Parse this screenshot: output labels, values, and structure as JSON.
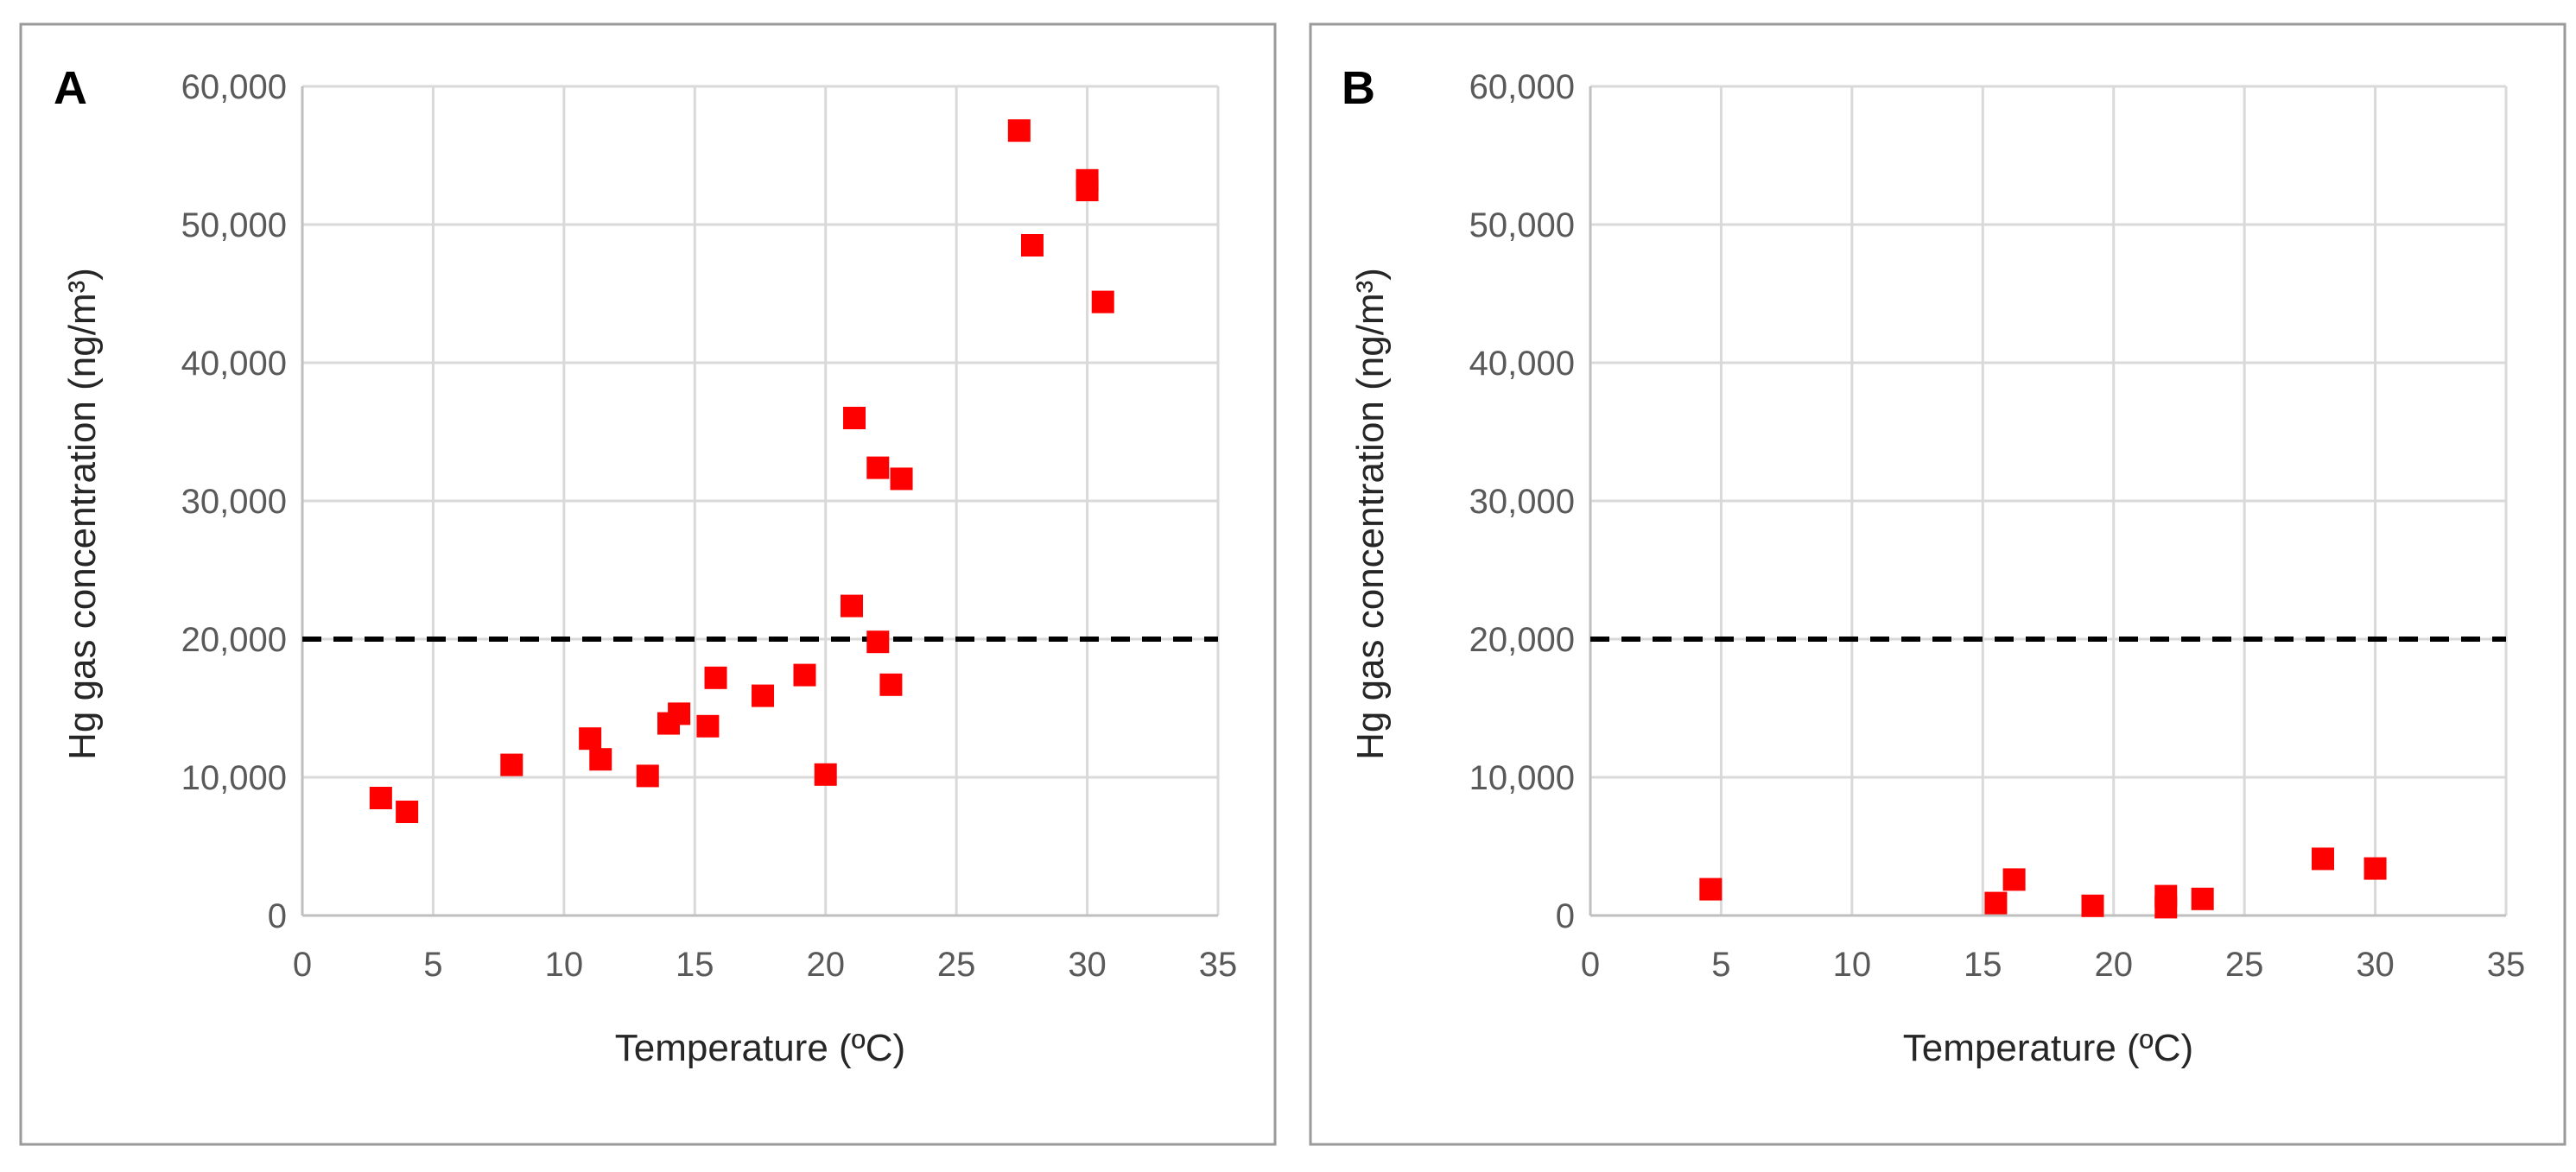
{
  "colors": {
    "marker": "#ff0000",
    "threshold": "#000000",
    "grid": "#d9d9d9",
    "tick_text": "#595959"
  },
  "chart_data": [
    {
      "type": "scatter",
      "panel_label": "A",
      "xlabel": "Temperature (ºC)",
      "ylabel": "Hg gas concentration (ng/m³)",
      "xlim": [
        0,
        35
      ],
      "ylim": [
        0,
        60000
      ],
      "x_ticks": [
        0,
        5,
        10,
        15,
        20,
        25,
        30,
        35
      ],
      "y_ticks": [
        0,
        10000,
        20000,
        30000,
        40000,
        50000,
        60000
      ],
      "x_tick_labels": [
        "0",
        "5",
        "10",
        "15",
        "20",
        "25",
        "30",
        "35"
      ],
      "y_tick_labels": [
        "0",
        "10,000",
        "20,000",
        "30,000",
        "40,000",
        "50,000",
        "60,000"
      ],
      "threshold": 20000,
      "points": [
        {
          "x": 3.0,
          "y": 8500
        },
        {
          "x": 4.0,
          "y": 7500
        },
        {
          "x": 8.0,
          "y": 10900
        },
        {
          "x": 11.0,
          "y": 12800
        },
        {
          "x": 11.4,
          "y": 11300
        },
        {
          "x": 13.2,
          "y": 10100
        },
        {
          "x": 14.0,
          "y": 13900
        },
        {
          "x": 14.4,
          "y": 14600
        },
        {
          "x": 15.5,
          "y": 13700
        },
        {
          "x": 15.8,
          "y": 17200
        },
        {
          "x": 17.6,
          "y": 15900
        },
        {
          "x": 19.2,
          "y": 17400
        },
        {
          "x": 20.0,
          "y": 10200
        },
        {
          "x": 21.0,
          "y": 22400
        },
        {
          "x": 21.1,
          "y": 36000
        },
        {
          "x": 22.0,
          "y": 32400
        },
        {
          "x": 22.0,
          "y": 19800
        },
        {
          "x": 22.5,
          "y": 16700
        },
        {
          "x": 22.9,
          "y": 31600
        },
        {
          "x": 27.4,
          "y": 56800
        },
        {
          "x": 27.9,
          "y": 48500
        },
        {
          "x": 30.0,
          "y": 53200
        },
        {
          "x": 30.0,
          "y": 52500
        },
        {
          "x": 30.6,
          "y": 44400
        }
      ]
    },
    {
      "type": "scatter",
      "panel_label": "B",
      "xlabel": "Temperature (ºC)",
      "ylabel": "Hg gas concentration (ng/m³)",
      "xlim": [
        0,
        35
      ],
      "ylim": [
        0,
        60000
      ],
      "x_ticks": [
        0,
        5,
        10,
        15,
        20,
        25,
        30,
        35
      ],
      "y_ticks": [
        0,
        10000,
        20000,
        30000,
        40000,
        50000,
        60000
      ],
      "x_tick_labels": [
        "0",
        "5",
        "10",
        "15",
        "20",
        "25",
        "30",
        "35"
      ],
      "y_tick_labels": [
        "0",
        "10,000",
        "20,000",
        "30,000",
        "40,000",
        "50,000",
        "60,000"
      ],
      "threshold": 20000,
      "points": [
        {
          "x": 4.6,
          "y": 1900
        },
        {
          "x": 15.5,
          "y": 900
        },
        {
          "x": 16.2,
          "y": 2600
        },
        {
          "x": 19.2,
          "y": 700
        },
        {
          "x": 22.0,
          "y": 1400
        },
        {
          "x": 22.0,
          "y": 600
        },
        {
          "x": 23.4,
          "y": 1200
        },
        {
          "x": 28.0,
          "y": 4100
        },
        {
          "x": 30.0,
          "y": 3400
        }
      ]
    }
  ]
}
